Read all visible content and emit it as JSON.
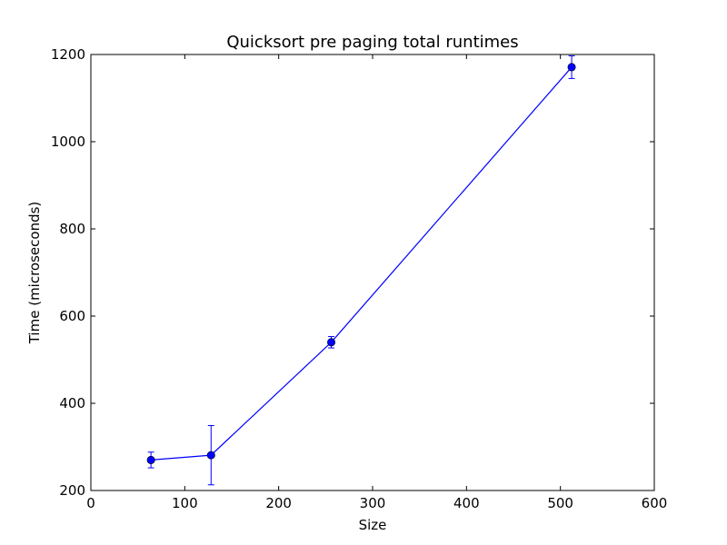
{
  "chart_data": {
    "type": "line",
    "title": "Quicksort pre paging total runtimes",
    "xlabel": "Size",
    "ylabel": "Time (microseconds)",
    "xlim": [
      0,
      600
    ],
    "ylim": [
      200,
      1200
    ],
    "xticks": [
      0,
      100,
      200,
      300,
      400,
      500,
      600
    ],
    "yticks": [
      200,
      400,
      600,
      800,
      1000,
      1200
    ],
    "grid": false,
    "series": [
      {
        "color": "#0000ff",
        "marker": "circle",
        "points": [
          {
            "x": 64,
            "y": 270,
            "err": 18
          },
          {
            "x": 128,
            "y": 281,
            "err": 68
          },
          {
            "x": 256,
            "y": 540,
            "err": 13
          },
          {
            "x": 512,
            "y": 1171,
            "err": 26
          }
        ]
      }
    ]
  }
}
